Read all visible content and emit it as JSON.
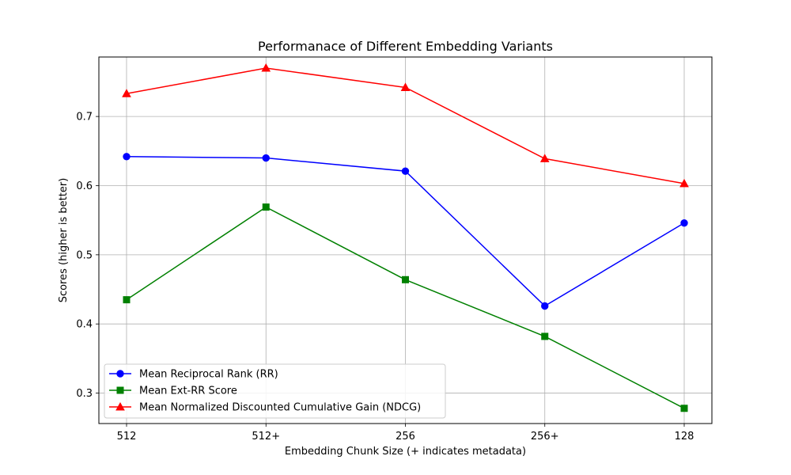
{
  "chart_data": {
    "type": "line",
    "title": "Performanace of Different Embedding Variants",
    "xlabel": "Embedding Chunk Size (+ indicates metadata)",
    "ylabel": "Scores (higher is better)",
    "categories": [
      "512",
      "512+",
      "256",
      "256+",
      "128"
    ],
    "ylim": [
      0.256,
      0.786
    ],
    "yticks": [
      0.3,
      0.4,
      0.5,
      0.6,
      0.7
    ],
    "ytick_labels": [
      "0.3",
      "0.4",
      "0.5",
      "0.6",
      "0.7"
    ],
    "grid": true,
    "legend_position": "lower-left",
    "series": [
      {
        "name": "Mean Reciprocal Rank (RR)",
        "values": [
          0.642,
          0.64,
          0.621,
          0.426,
          0.546
        ],
        "color": "#0000ff",
        "marker": "circle"
      },
      {
        "name": "Mean Ext-RR Score",
        "values": [
          0.435,
          0.569,
          0.464,
          0.382,
          0.278
        ],
        "color": "#008000",
        "marker": "square"
      },
      {
        "name": "Mean Normalized Discounted Cumulative Gain (NDCG)",
        "values": [
          0.733,
          0.77,
          0.742,
          0.639,
          0.603
        ],
        "color": "#ff0000",
        "marker": "triangle"
      }
    ]
  }
}
